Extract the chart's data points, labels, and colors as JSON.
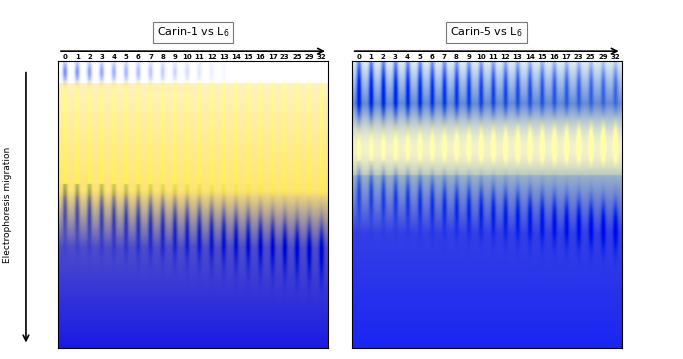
{
  "title_left": "Carin-1 vs L$_6$",
  "title_right": "Carin-5 vs L$_6$",
  "lane_labels": [
    "0",
    "1",
    "2",
    "3",
    "4",
    "5",
    "6",
    "7",
    "8",
    "9",
    "10",
    "11",
    "12",
    "13",
    "14",
    "15",
    "16",
    "17",
    "23",
    "25",
    "29",
    "32"
  ],
  "n_lanes": 22,
  "ylabel": "Electrophoresis migration",
  "fig_width": 6.83,
  "fig_height": 3.59
}
